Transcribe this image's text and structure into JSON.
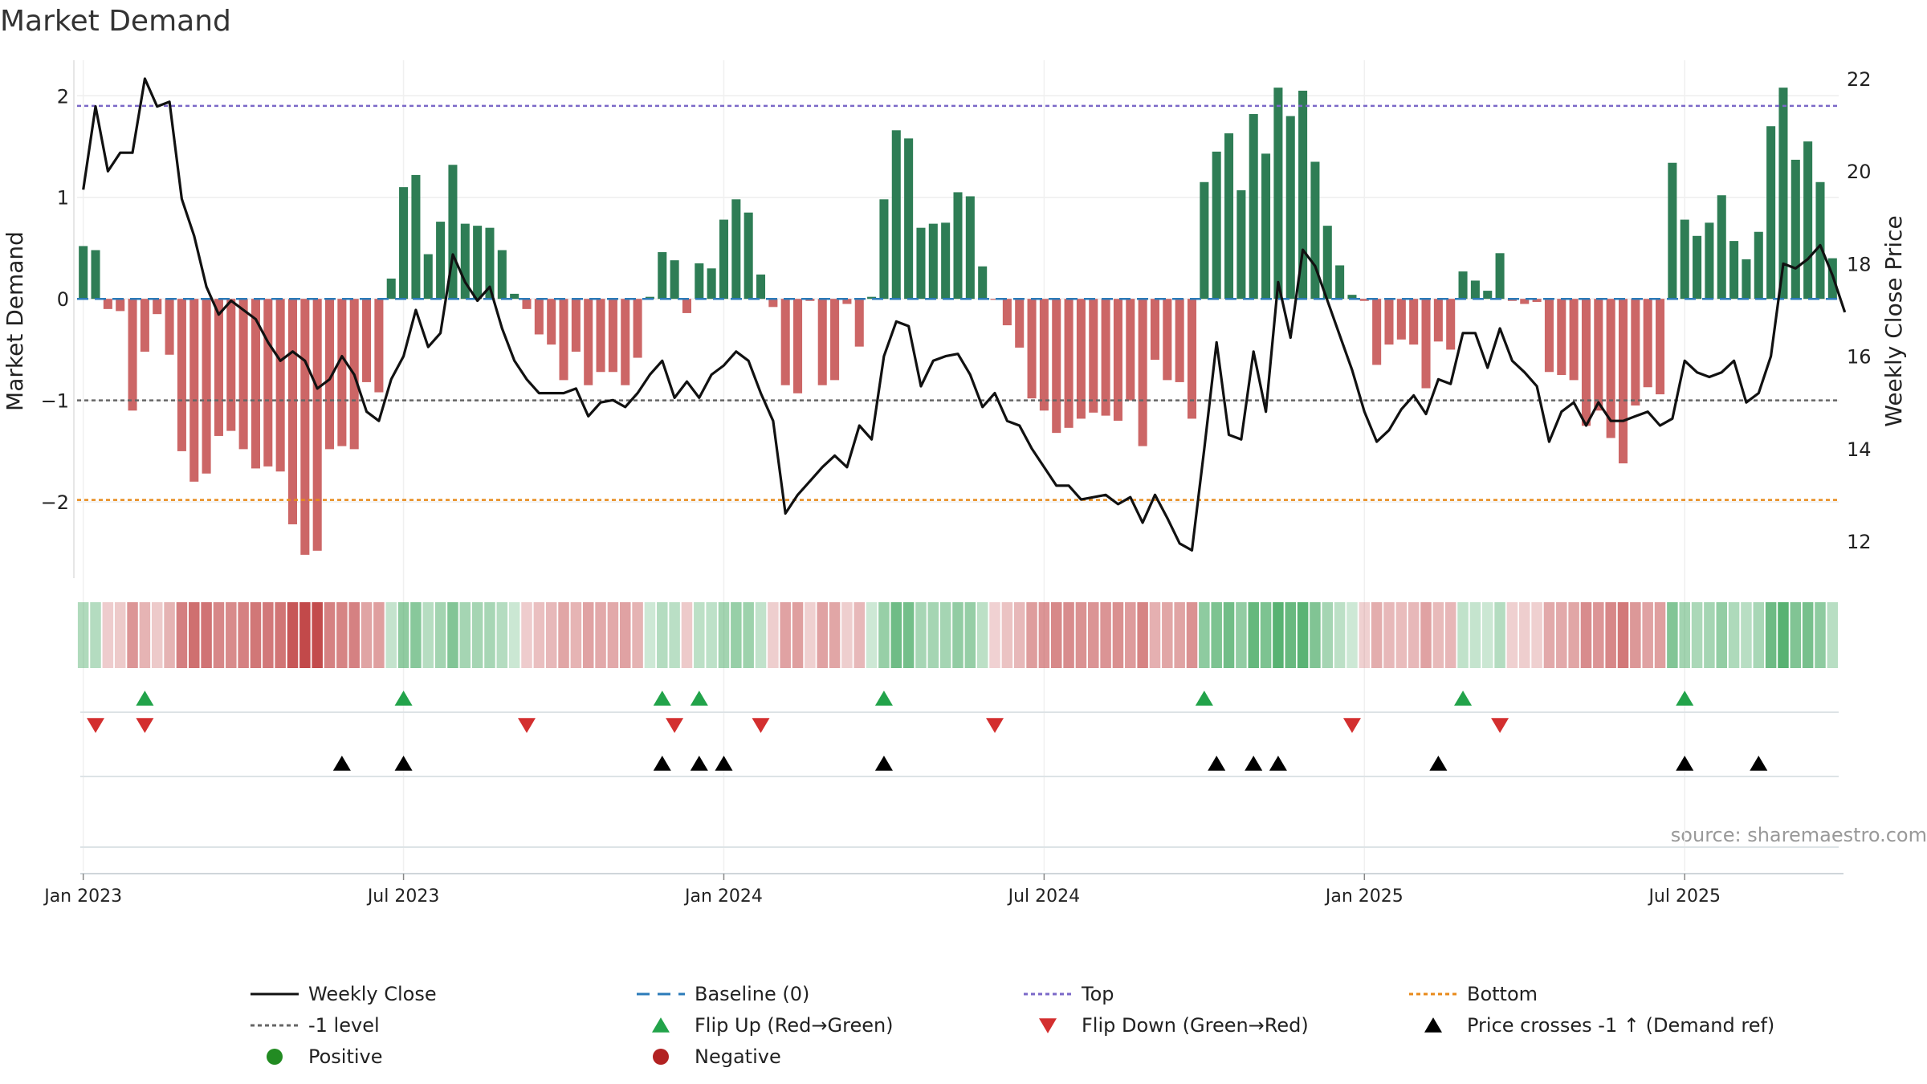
{
  "chart_data": {
    "type": "bar",
    "title": "Market Demand",
    "ylabel_left": "Market Demand",
    "ylabel_right": "Weekly Close Price",
    "source": "source: sharemaestro.com",
    "y_left_lim": [
      -2.75,
      2.35
    ],
    "y_right_lim": [
      11.2,
      22.4
    ],
    "y_left_ticks": [
      2,
      1,
      0,
      -1,
      -2
    ],
    "y_left_tick_labels": [
      "2",
      "1",
      "0",
      "−1",
      "−2"
    ],
    "y_right_ticks": [
      22,
      20,
      18,
      16,
      14,
      12
    ],
    "y_right_tick_labels": [
      "22",
      "20",
      "18",
      "16",
      "14",
      "12"
    ],
    "x_tick_labels": [
      "Jan 2023",
      "Jul 2023",
      "Jan 2024",
      "Jul 2024",
      "Jan 2025",
      "Jul 2025"
    ],
    "x_tick_weeks": [
      0.5,
      26.5,
      52.5,
      78.5,
      104.5,
      130.5
    ],
    "reference_lines": {
      "top": 1.9,
      "minus1": -1,
      "bottom": -1.98,
      "baseline": 0
    },
    "colors": {
      "positive": "#2e7d55",
      "negative": "#c85a5a",
      "close": "#111111",
      "top": "#7b68c8",
      "bottom": "#e88a1a",
      "baseline": "#2b7bb9",
      "minus1": "#666666",
      "flip_up": "#22a34a",
      "flip_down": "#d32f2f",
      "cross": "#000000"
    },
    "series": [
      {
        "name": "Market Demand",
        "values": [
          0.52,
          0.48,
          -0.1,
          -0.12,
          -1.1,
          -0.52,
          -0.15,
          -0.55,
          -1.5,
          -1.8,
          -1.72,
          -1.35,
          -1.3,
          -1.48,
          -1.67,
          -1.65,
          -1.7,
          -2.22,
          -2.52,
          -2.48,
          -1.48,
          -1.45,
          -1.48,
          -0.82,
          -0.92,
          0.2,
          1.1,
          1.22,
          0.44,
          0.76,
          1.32,
          0.74,
          0.72,
          0.7,
          0.48,
          0.05,
          -0.1,
          -0.35,
          -0.45,
          -0.8,
          -0.52,
          -0.85,
          -0.72,
          -0.72,
          -0.85,
          -0.58,
          0.02,
          0.46,
          0.38,
          -0.14,
          0.35,
          0.3,
          0.78,
          0.98,
          0.85,
          0.24,
          -0.08,
          -0.85,
          -0.93,
          -0.02,
          -0.85,
          -0.8,
          -0.05,
          -0.47,
          0.02,
          0.98,
          1.66,
          1.58,
          0.7,
          0.74,
          0.75,
          1.05,
          1.01,
          0.32,
          -0.01,
          -0.26,
          -0.48,
          -0.98,
          -1.1,
          -1.32,
          -1.27,
          -1.18,
          -1.12,
          -1.15,
          -1.2,
          -1.0,
          -1.45,
          -0.6,
          -0.8,
          -0.82,
          -1.18,
          1.15,
          1.45,
          1.63,
          1.07,
          1.82,
          1.43,
          2.08,
          1.8,
          2.05,
          1.35,
          0.72,
          0.33,
          0.04,
          -0.02,
          -0.65,
          -0.45,
          -0.4,
          -0.45,
          -0.88,
          -0.42,
          -0.5,
          0.27,
          0.18,
          0.08,
          0.45,
          -0.02,
          -0.05,
          -0.03,
          -0.72,
          -0.75,
          -0.8,
          -1.25,
          -1.1,
          -1.37,
          -1.62,
          -1.05,
          -0.87,
          -0.94,
          1.34,
          0.78,
          0.62,
          0.75,
          1.02,
          0.57,
          0.39,
          0.66,
          1.7,
          2.08,
          1.37,
          1.55,
          1.15,
          0.4
        ]
      },
      {
        "name": "Weekly Close",
        "values": [
          19.6,
          21.4,
          20.0,
          20.4,
          20.4,
          22.0,
          21.4,
          21.5,
          19.4,
          18.6,
          17.5,
          16.9,
          17.2,
          17.0,
          16.8,
          16.3,
          15.9,
          16.1,
          15.9,
          15.3,
          15.5,
          16.0,
          15.6,
          14.8,
          14.6,
          15.5,
          16.0,
          17.0,
          16.2,
          16.5,
          18.2,
          17.6,
          17.2,
          17.5,
          16.6,
          15.9,
          15.5,
          15.2,
          15.2,
          15.2,
          15.3,
          14.7,
          15.0,
          15.05,
          14.9,
          15.2,
          15.6,
          15.9,
          15.1,
          15.45,
          15.1,
          15.6,
          15.8,
          16.1,
          15.9,
          15.2,
          14.6,
          12.6,
          13.0,
          13.3,
          13.6,
          13.85,
          13.6,
          14.5,
          14.2,
          16.0,
          16.75,
          16.65,
          15.35,
          15.9,
          16.0,
          16.05,
          15.6,
          14.9,
          15.2,
          14.6,
          14.5,
          14.0,
          13.6,
          13.2,
          13.2,
          12.9,
          12.95,
          13.0,
          12.8,
          12.95,
          12.4,
          13.0,
          12.5,
          11.95,
          11.8,
          14.0,
          16.3,
          14.3,
          14.2,
          16.1,
          14.8,
          17.6,
          16.4,
          18.3,
          17.95,
          17.2,
          16.45,
          15.7,
          14.8,
          14.15,
          14.4,
          14.85,
          15.15,
          14.75,
          15.5,
          15.4,
          16.5,
          16.5,
          15.75,
          16.6,
          15.9,
          15.65,
          15.35,
          14.15,
          14.8,
          15.0,
          14.5,
          15.0,
          14.6,
          14.6,
          14.7,
          14.8,
          14.5,
          14.65,
          15.9,
          15.65,
          15.55,
          15.65,
          15.9,
          15.0,
          15.2,
          16.0,
          18.0,
          17.9,
          18.1,
          18.4,
          17.75,
          16.95
        ]
      }
    ],
    "flip_up_weeks": [
      5,
      26,
      47,
      50,
      65,
      91,
      112,
      130
    ],
    "flip_down_weeks": [
      1,
      5,
      36,
      48,
      55,
      74,
      103,
      115
    ],
    "cross_weeks": [
      21,
      26,
      47,
      50,
      52,
      65,
      92,
      95,
      97,
      110,
      130,
      136
    ],
    "legend": [
      {
        "label": "Weekly Close",
        "kind": "line",
        "color": "#111111"
      },
      {
        "label": "Baseline (0)",
        "kind": "dash-long",
        "color": "#2b7bb9"
      },
      {
        "label": "Top",
        "kind": "dash-short",
        "color": "#7b68c8"
      },
      {
        "label": "Bottom",
        "kind": "dash-short",
        "color": "#e88a1a"
      },
      {
        "label": "-1 level",
        "kind": "dash-short",
        "color": "#666666"
      },
      {
        "label": "Flip Up (Red→Green)",
        "kind": "tri-up",
        "color": "#22a34a"
      },
      {
        "label": "Flip Down (Green→Red)",
        "kind": "tri-down",
        "color": "#d32f2f"
      },
      {
        "label": "Price crosses -1 ↑ (Demand ref)",
        "kind": "tri-up",
        "color": "#000000"
      },
      {
        "label": "Positive",
        "kind": "dot",
        "color": "#228b22"
      },
      {
        "label": "Negative",
        "kind": "dot",
        "color": "#b22222"
      }
    ]
  }
}
